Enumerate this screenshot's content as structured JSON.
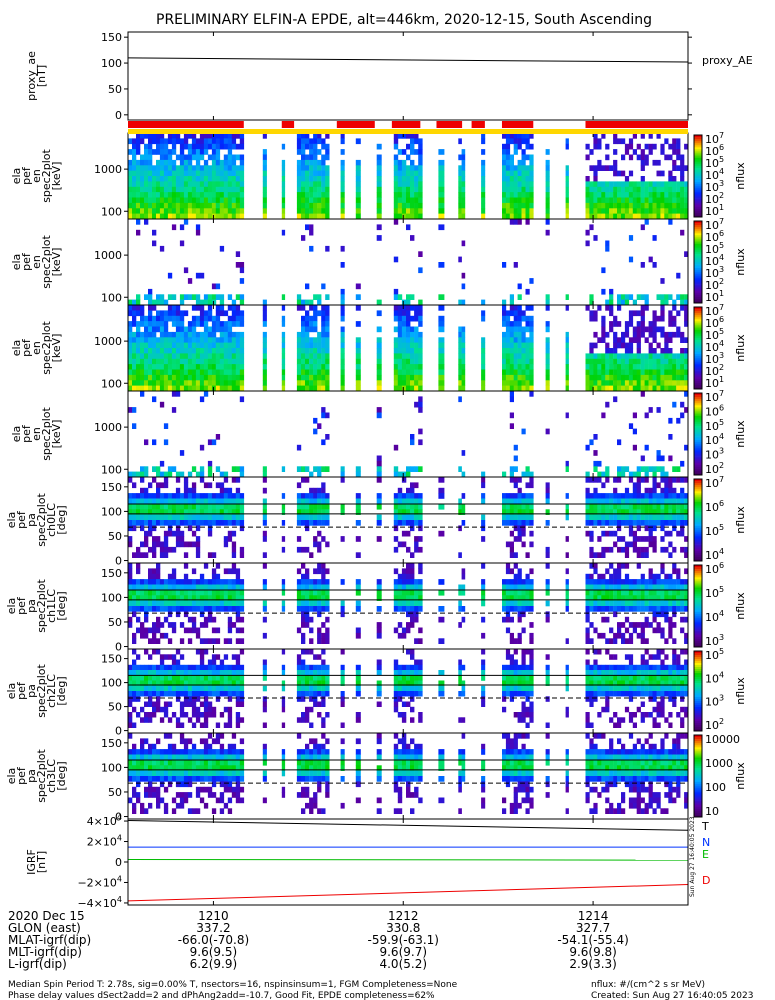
{
  "title": "PRELIMINARY ELFIN-A EPDE, alt=446km, 2020-12-15, South Ascending",
  "colors": {
    "red": "#ee0000",
    "yellow": "#ffd700",
    "blue": "#0033ff",
    "green": "#00bb00",
    "black": "#000000"
  },
  "chart_data": [
    {
      "type": "line",
      "panel": "proxy_ae",
      "ylabel_lines": [
        "proxy_ae",
        "[nT]"
      ],
      "yticks": [
        "150",
        "100",
        "50",
        "0"
      ],
      "ylim": [
        -10,
        160
      ],
      "legend": "proxy_AE",
      "x": [
        1209.1,
        1215.0
      ],
      "values": [
        110,
        102
      ]
    },
    {
      "type": "heatmap",
      "panel": "ela_pef_en_spec2plot_omni",
      "ylabel_lines": [
        "ela",
        "pef",
        "en",
        "spec2plot",
        "[keV]"
      ],
      "yticks": [
        "1000",
        "100"
      ],
      "cbar_ticks": [
        "10^7",
        "10^6",
        "10^5",
        "10^4",
        "10^3",
        "10^2",
        "10^1"
      ],
      "cbar_label": "nflux"
    },
    {
      "type": "heatmap",
      "panel": "ela_pef_en_spec2plot_anti",
      "ylabel_lines": [
        "ela",
        "pef",
        "en",
        "spec2plot",
        "[keV]"
      ],
      "yticks": [
        "1000",
        "100"
      ],
      "cbar_ticks": [
        "10^7",
        "10^6",
        "10^5",
        "10^4",
        "10^3",
        "10^2",
        "10^1"
      ],
      "cbar_label": "nflux"
    },
    {
      "type": "heatmap",
      "panel": "ela_pef_en_spec2plot_perp",
      "ylabel_lines": [
        "ela",
        "pef",
        "en",
        "spec2plot",
        "[keV]"
      ],
      "yticks": [
        "1000",
        "100"
      ],
      "cbar_ticks": [
        "10^7",
        "10^6",
        "10^5",
        "10^4",
        "10^3",
        "10^2",
        "10^1"
      ],
      "cbar_label": "nflux"
    },
    {
      "type": "heatmap",
      "panel": "ela_pef_en_spec2plot_para",
      "ylabel_lines": [
        "ela",
        "pef",
        "en",
        "spec2plot",
        "[keV]"
      ],
      "yticks": [
        "1000",
        "100"
      ],
      "cbar_ticks": [
        "10^7",
        "10^6",
        "10^5",
        "10^4",
        "10^3",
        "10^2"
      ],
      "cbar_label": "nflux"
    },
    {
      "type": "heatmap",
      "panel": "ela_pef_pa_spec2plot_ch0LC",
      "ylabel_lines": [
        "ela",
        "pef",
        "pa",
        "spec2plot",
        "ch0LC",
        "[deg]"
      ],
      "yticks": [
        "150",
        "100",
        "50",
        "0"
      ],
      "cbar_ticks": [
        "10^7",
        "10^6",
        "10^5",
        "10^4"
      ],
      "cbar_label": "nflux"
    },
    {
      "type": "heatmap",
      "panel": "ela_pef_pa_spec2plot_ch1LC",
      "ylabel_lines": [
        "ela",
        "pef",
        "pa",
        "spec2plot",
        "ch1LC",
        "[deg]"
      ],
      "yticks": [
        "150",
        "100",
        "50",
        "0"
      ],
      "cbar_ticks": [
        "10^6",
        "10^5",
        "10^4",
        "10^3"
      ],
      "cbar_label": "nflux"
    },
    {
      "type": "heatmap",
      "panel": "ela_pef_pa_spec2plot_ch2LC",
      "ylabel_lines": [
        "ela",
        "pef",
        "pa",
        "spec2plot",
        "ch2LC",
        "[deg]"
      ],
      "yticks": [
        "150",
        "100",
        "50",
        "0"
      ],
      "cbar_ticks": [
        "10^5",
        "10^4",
        "10^3",
        "10^2"
      ],
      "cbar_label": "nflux"
    },
    {
      "type": "heatmap",
      "panel": "ela_pef_pa_spec2plot_ch3LC",
      "ylabel_lines": [
        "ela",
        "pef",
        "pa",
        "spec2plot",
        "ch3LC",
        "[deg]"
      ],
      "yticks": [
        "150",
        "100",
        "50",
        "0"
      ],
      "cbar_ticks": [
        "10000",
        "1000",
        "100",
        "10"
      ],
      "cbar_label": "nflux"
    },
    {
      "type": "line",
      "panel": "igrf",
      "ylabel_lines": [
        "IGRF",
        "[nT]"
      ],
      "yticks": [
        "4×10^4",
        "2×10^4",
        "0",
        "−2×10^4",
        "−4×10^4"
      ],
      "ylim": [
        -42000,
        42000
      ],
      "x": [
        1209.1,
        1215.0
      ],
      "series": [
        {
          "name": "T",
          "color": "#000000",
          "values": [
            40500,
            31000
          ]
        },
        {
          "name": "N",
          "color": "#0033ff",
          "values": [
            14500,
            14500
          ]
        },
        {
          "name": "E",
          "color": "#00bb00",
          "values": [
            2500,
            1800
          ]
        },
        {
          "name": "D",
          "color": "#ee0000",
          "values": [
            -38000,
            -22000
          ]
        }
      ]
    }
  ],
  "xaxis": {
    "rows": [
      {
        "label": "2020 Dec 15",
        "values": [
          "1210",
          "1212",
          "1214"
        ]
      },
      {
        "label": "GLON (east)",
        "values": [
          "337.2",
          "330.8",
          "327.7"
        ]
      },
      {
        "label": "MLAT-igrf(dip)",
        "values": [
          "-66.0(-70.8)",
          "-59.9(-63.1)",
          "-54.1(-55.4)"
        ]
      },
      {
        "label": "MLT-igrf(dip)",
        "values": [
          "9.6(9.5)",
          "9.6(9.7)",
          "9.6(9.8)"
        ]
      },
      {
        "label": "L-igrf(dip)",
        "values": [
          "6.2(9.9)",
          "4.0(5.2)",
          "2.9(3.3)"
        ]
      }
    ],
    "tick_times": [
      1210,
      1212,
      1214
    ]
  },
  "footer": {
    "left_line1": "Median Spin Period T: 2.78s, sig=0.00% T, nsectors=16, nspinsinsum=1, FGM Completeness=None",
    "left_line2": "Phase delay values dSect2add=2 and dPhAng2add=-10.7, Good Fit, EPDE completeness=62%",
    "right_line1": "nflux: #/(cm^2 s sr MeV)",
    "right_line2": "Created: Sun Aug 27 16:40:05 2023",
    "timestamp_vertical": "Sun Aug 27 16:40:05 2023"
  }
}
